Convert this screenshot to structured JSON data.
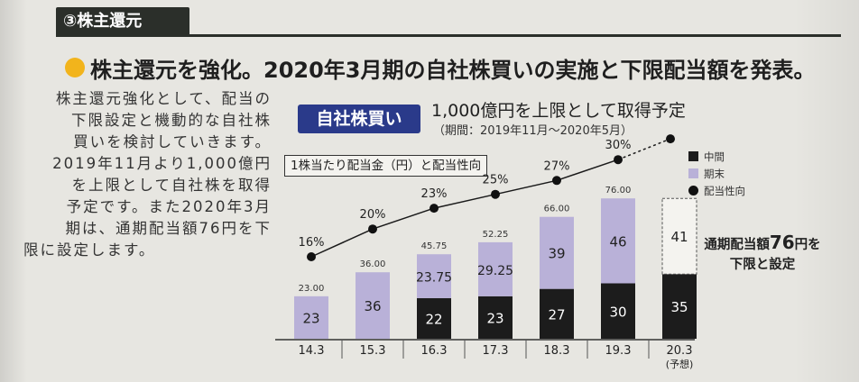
{
  "section": {
    "label": "③株主還元"
  },
  "headline": {
    "text": "株主還元を強化。2020年3月期の自社株買いの実施と下限配当額を発表。"
  },
  "body": {
    "lines": [
      "株主還元強化として、配当の",
      "下限設定と機動的な自社株",
      "買いを検討していきます。",
      "2019年11月より1,000億円",
      "を上限として自社株を取得",
      "予定です。また2020年3月",
      "期は、通期配当額76円を下",
      "限に設定します。"
    ]
  },
  "buyback": {
    "badge": "自社株買い",
    "main": "1,000億円を上限として取得予定",
    "sub": "（期間：2019年11月〜2020年5月）"
  },
  "callout": {
    "pre": "通期配当額",
    "amount": "76",
    "post": "円を",
    "line2": "下限と設定"
  },
  "chart_data": {
    "type": "bar",
    "title": "1株当たり配当金（円）と配当性向",
    "categories": [
      "14.3",
      "15.3",
      "16.3",
      "17.3",
      "18.3",
      "19.3",
      "20.3"
    ],
    "category_notes": [
      "",
      "",
      "",
      "",
      "",
      "",
      "(予想)"
    ],
    "series": [
      {
        "name": "中間",
        "values": [
          0,
          0,
          22,
          23,
          27,
          30,
          35
        ],
        "labels": [
          "",
          "",
          "22",
          "23",
          "27",
          "30",
          "35"
        ]
      },
      {
        "name": "期末",
        "values": [
          23,
          36,
          23.75,
          29.25,
          39,
          46,
          41
        ],
        "labels": [
          "23",
          "36",
          "23.75",
          "29.25",
          "39",
          "46",
          "41"
        ]
      }
    ],
    "totals": [
      23,
      36,
      45.75,
      52.25,
      66,
      76,
      null
    ],
    "total_labels": [
      "23.00",
      "36.00",
      "45.75",
      "52.25",
      "66.00",
      "76.00",
      ""
    ],
    "payout_ratio": {
      "name": "配当性向",
      "values": [
        16,
        20,
        23,
        25,
        27,
        30,
        null
      ],
      "labels": [
        "16%",
        "20%",
        "23%",
        "25%",
        "27%",
        "30%",
        ""
      ]
    },
    "ylim": [
      0,
      80
    ],
    "colors": {
      "interim": "#1c1c1c",
      "final": "#b9b1d8",
      "forecast_final": "#f4f3ef",
      "line": "#1a1a1a"
    },
    "legend_position": "top-right",
    "grid": false
  }
}
